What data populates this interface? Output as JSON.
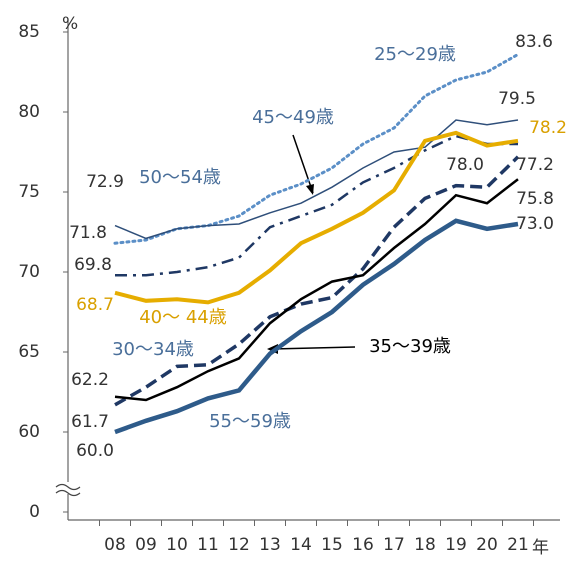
{
  "chart_data": {
    "type": "line",
    "categories": [
      "08",
      "09",
      "10",
      "11",
      "12",
      "13",
      "14",
      "15",
      "16",
      "17",
      "18",
      "19",
      "20",
      "21"
    ],
    "x_unit": "年",
    "y_unit": "%",
    "ylim": [
      0,
      85
    ],
    "axis_break": [
      0,
      60
    ],
    "yticks": [
      0,
      60,
      65,
      70,
      75,
      80,
      85
    ],
    "series": [
      {
        "name": "25～29歳",
        "color": "#5b8fc7",
        "style": "dotted",
        "width": 3,
        "values": [
          71.8,
          72.0,
          72.7,
          72.9,
          73.5,
          74.8,
          75.5,
          76.5,
          78.0,
          79.0,
          81.0,
          82.0,
          82.5,
          83.6
        ],
        "value_labels": [
          "71.8",
          null,
          null,
          null,
          null,
          null,
          null,
          null,
          null,
          null,
          null,
          null,
          null,
          "83.6"
        ]
      },
      {
        "name": "45～49歳",
        "color": "#2f4f7a",
        "style": "solid",
        "width": 1.5,
        "values": [
          72.9,
          72.1,
          72.7,
          72.9,
          73.0,
          73.7,
          74.3,
          75.3,
          76.5,
          77.5,
          77.8,
          79.5,
          79.2,
          79.5
        ],
        "value_labels": [
          "72.9",
          null,
          null,
          null,
          null,
          null,
          null,
          null,
          null,
          null,
          null,
          null,
          null,
          "79.5"
        ]
      },
      {
        "name": "50～54歳",
        "color": "#1f3864",
        "style": "dashdot",
        "width": 2.5,
        "values": [
          69.8,
          69.8,
          70.0,
          70.3,
          70.9,
          72.8,
          73.5,
          74.2,
          75.6,
          76.5,
          77.6,
          78.5,
          78.0,
          78.0
        ],
        "value_labels": [
          "69.8",
          null,
          null,
          null,
          null,
          null,
          null,
          null,
          null,
          null,
          null,
          null,
          null,
          "78.0"
        ]
      },
      {
        "name": "40～ 44歳",
        "color": "#e6ad00",
        "style": "solid",
        "width": 4,
        "values": [
          68.7,
          68.2,
          68.3,
          68.1,
          68.7,
          70.1,
          71.8,
          72.7,
          73.7,
          75.1,
          78.2,
          78.7,
          77.9,
          78.2
        ],
        "value_labels": [
          "68.7",
          null,
          null,
          null,
          null,
          null,
          null,
          null,
          null,
          null,
          null,
          null,
          null,
          "78.2"
        ]
      },
      {
        "name": "30～34歳",
        "color": "#1f3864",
        "style": "dashed",
        "width": 3.5,
        "values": [
          61.7,
          62.8,
          64.1,
          64.2,
          65.5,
          67.2,
          68.0,
          68.4,
          70.2,
          72.8,
          74.6,
          75.4,
          75.3,
          77.2
        ],
        "value_labels": [
          "61.7",
          null,
          null,
          null,
          null,
          null,
          null,
          null,
          null,
          null,
          null,
          null,
          null,
          "77.2"
        ]
      },
      {
        "name": "35～39歳",
        "color": "#000000",
        "style": "solid",
        "width": 2.5,
        "values": [
          62.2,
          62.0,
          62.8,
          63.8,
          64.6,
          66.8,
          68.3,
          69.4,
          69.8,
          71.5,
          73.0,
          74.8,
          74.3,
          75.8
        ],
        "value_labels": [
          "62.2",
          null,
          null,
          null,
          null,
          null,
          null,
          null,
          null,
          null,
          null,
          null,
          null,
          "75.8"
        ]
      },
      {
        "name": "55～59歳",
        "color": "#2e5b8a",
        "style": "solid",
        "width": 4.5,
        "values": [
          60.0,
          60.7,
          61.3,
          62.1,
          62.6,
          64.9,
          66.3,
          67.5,
          69.2,
          70.5,
          72.0,
          73.2,
          72.7,
          73.0
        ],
        "value_labels": [
          "60.0",
          null,
          null,
          null,
          null,
          null,
          null,
          null,
          null,
          null,
          null,
          null,
          null,
          "73.0"
        ]
      }
    ]
  }
}
